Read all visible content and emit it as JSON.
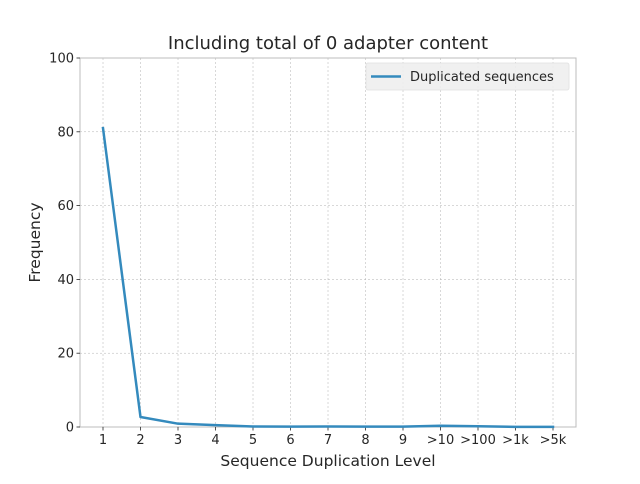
{
  "chart_data": {
    "type": "line",
    "title": "Including total of 0 adapter content",
    "xlabel": "Sequence Duplication Level",
    "ylabel": "Frequency",
    "categories": [
      "1",
      "2",
      "3",
      "4",
      "5",
      "6",
      "7",
      "8",
      "9",
      ">10",
      ">100",
      ">1k",
      ">5k"
    ],
    "yticks": [
      0,
      20,
      40,
      60,
      80,
      100
    ],
    "ylim": [
      0,
      100
    ],
    "grid": true,
    "legend_position": "top-right",
    "series": [
      {
        "name": "Duplicated sequences",
        "color": "#348abd",
        "values": [
          81.0,
          2.7,
          0.9,
          0.5,
          0.15,
          0.1,
          0.15,
          0.1,
          0.1,
          0.35,
          0.2,
          0.05,
          0.05
        ]
      }
    ]
  }
}
